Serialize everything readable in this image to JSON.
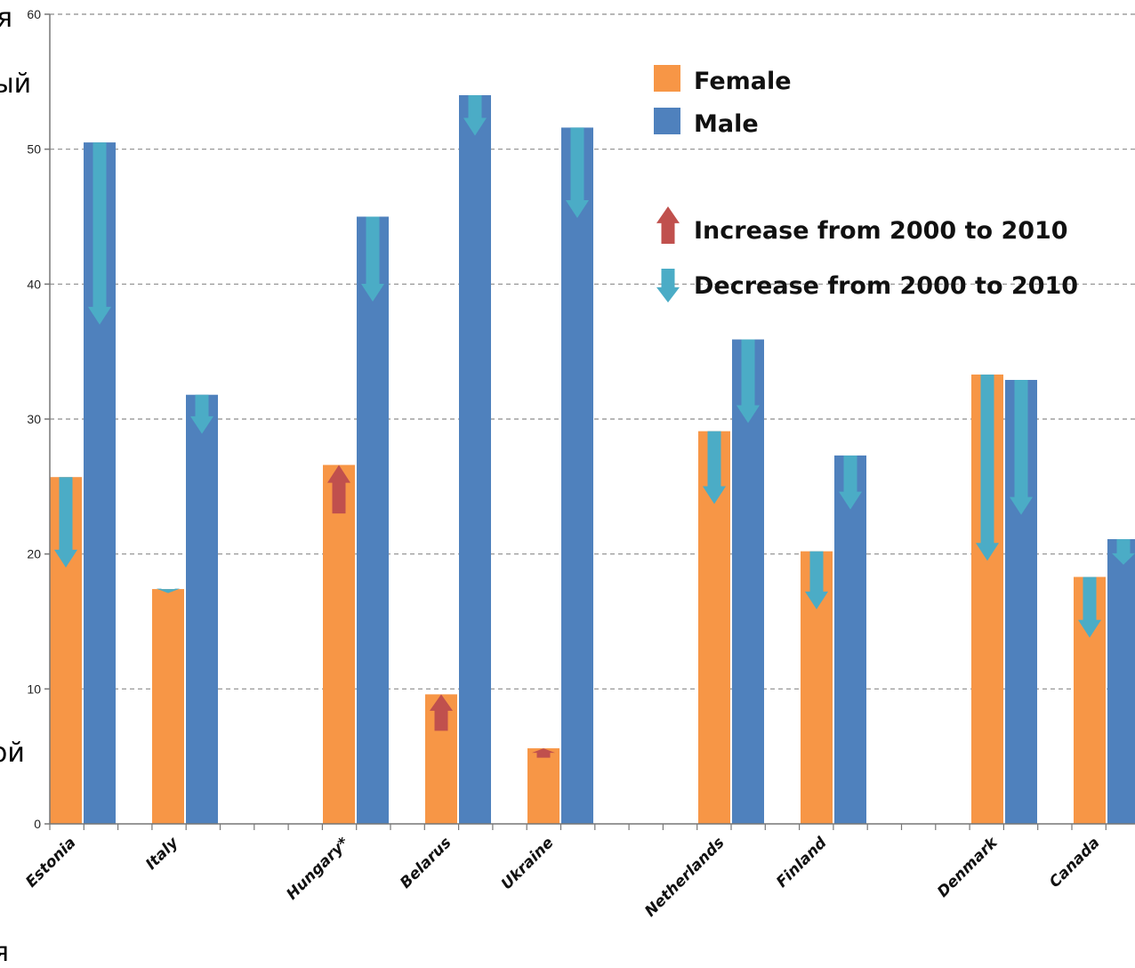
{
  "chart_data": {
    "type": "bar",
    "title": "",
    "xlabel": "",
    "ylabel": "",
    "ylim": [
      0,
      60
    ],
    "yticks": [
      0,
      10,
      20,
      30,
      40,
      50,
      60
    ],
    "grid": true,
    "legend_position": "top-right",
    "categories": [
      "Estonia",
      "Italy",
      "Hungary*",
      "Belarus",
      "Ukraine",
      "Netherlands",
      "Finland",
      "Denmark",
      "Canada"
    ],
    "series": [
      {
        "name": "Female",
        "color": "#F79646",
        "values": [
          25.7,
          17.4,
          26.6,
          9.6,
          5.6,
          29.1,
          20.2,
          33.3,
          18.3
        ]
      },
      {
        "name": "Male",
        "color": "#4F81BD",
        "values": [
          50.5,
          31.8,
          45.0,
          54.0,
          51.6,
          35.9,
          27.3,
          32.9,
          21.1
        ]
      }
    ],
    "changes": [
      {
        "category": "Estonia",
        "series": "Female",
        "from": 25.7,
        "to": 19.0,
        "direction": "decrease"
      },
      {
        "category": "Estonia",
        "series": "Male",
        "from": 50.5,
        "to": 37.0,
        "direction": "decrease"
      },
      {
        "category": "Italy",
        "series": "Female",
        "from": 17.4,
        "to": 17.1,
        "direction": "decrease"
      },
      {
        "category": "Italy",
        "series": "Male",
        "from": 31.8,
        "to": 28.9,
        "direction": "decrease"
      },
      {
        "category": "Hungary*",
        "series": "Female",
        "from": 23.0,
        "to": 26.6,
        "direction": "increase"
      },
      {
        "category": "Hungary*",
        "series": "Male",
        "from": 45.0,
        "to": 38.7,
        "direction": "decrease"
      },
      {
        "category": "Belarus",
        "series": "Female",
        "from": 6.9,
        "to": 9.6,
        "direction": "increase"
      },
      {
        "category": "Belarus",
        "series": "Male",
        "from": 54.0,
        "to": 51.0,
        "direction": "decrease"
      },
      {
        "category": "Ukraine",
        "series": "Female",
        "from": 4.9,
        "to": 5.6,
        "direction": "increase"
      },
      {
        "category": "Ukraine",
        "series": "Male",
        "from": 51.6,
        "to": 44.9,
        "direction": "decrease"
      },
      {
        "category": "Netherlands",
        "series": "Female",
        "from": 29.1,
        "to": 23.7,
        "direction": "decrease"
      },
      {
        "category": "Netherlands",
        "series": "Male",
        "from": 35.9,
        "to": 29.7,
        "direction": "decrease"
      },
      {
        "category": "Finland",
        "series": "Female",
        "from": 20.2,
        "to": 15.9,
        "direction": "decrease"
      },
      {
        "category": "Finland",
        "series": "Male",
        "from": 27.3,
        "to": 23.3,
        "direction": "decrease"
      },
      {
        "category": "Denmark",
        "series": "Female",
        "from": 33.3,
        "to": 19.5,
        "direction": "decrease"
      },
      {
        "category": "Denmark",
        "series": "Male",
        "from": 32.9,
        "to": 22.9,
        "direction": "decrease"
      },
      {
        "category": "Canada",
        "series": "Female",
        "from": 18.3,
        "to": 13.8,
        "direction": "decrease"
      },
      {
        "category": "Canada",
        "series": "Male",
        "from": 21.1,
        "to": 19.2,
        "direction": "decrease"
      }
    ],
    "legend": [
      {
        "label": "Female",
        "kind": "swatch",
        "color": "#F79646"
      },
      {
        "label": "Male",
        "kind": "swatch",
        "color": "#4F81BD"
      },
      {
        "label": "Increase from 2000 to 2010",
        "kind": "arrow-up",
        "color": "#C0504D"
      },
      {
        "label": "Decrease from 2000 to 2010",
        "kind": "arrow-down",
        "color": "#4BACC6"
      }
    ]
  },
  "background_fragments": [
    "я",
    "ый",
    "ой",
    "я"
  ]
}
